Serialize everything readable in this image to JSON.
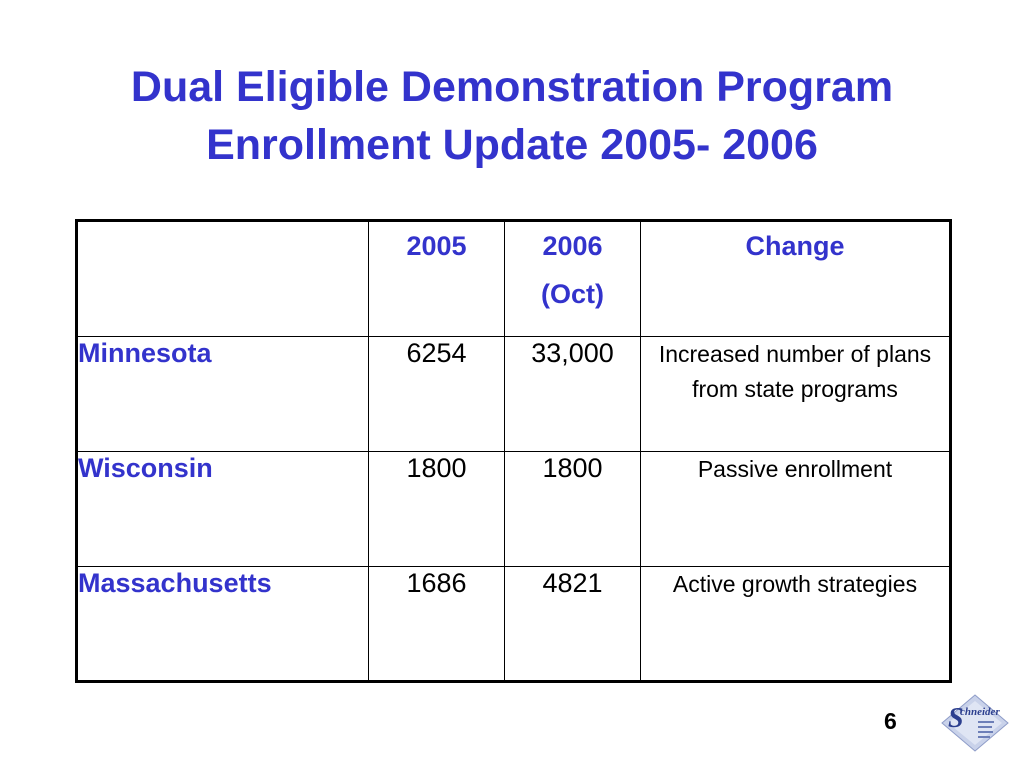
{
  "slide": {
    "title_line1": "Dual Eligible Demonstration Program",
    "title_line2": "Enrollment Update 2005- 2006",
    "page_number": "6",
    "colors": {
      "title": "#3333cc",
      "text": "#000000",
      "border": "#000000"
    }
  },
  "table": {
    "headers": [
      "",
      "2005",
      "2006\n(Oct)",
      "Change"
    ],
    "rows": [
      {
        "label": "Minnesota",
        "y2005": "6254",
        "y2006": "33,000",
        "change": "Increased number of plans from state programs"
      },
      {
        "label": "Wisconsin",
        "y2005": "1800",
        "y2006": "1800",
        "change": "Passive enrollment"
      },
      {
        "label": "Massachusetts",
        "y2005": "1686",
        "y2006": "4821",
        "change": "Active growth strategies"
      }
    ]
  },
  "logo": {
    "icon": "schneider-institute-logo",
    "text": "chneider",
    "initial": "S"
  }
}
